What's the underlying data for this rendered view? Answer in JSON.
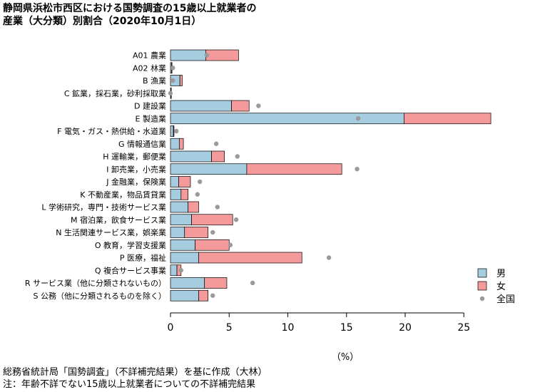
{
  "title_line1": "静岡県浜松市西区における国勢調査の15歳以上就業者の",
  "title_line2": "産業（大分類）別割合（2020年10月1日）",
  "footer_line1": "総務省統計局「国勢調査」（不詳補完結果）を基に作成（大林）",
  "footer_line2": "注：年齢不詳でない15歳以上就業者についての不詳補完結果",
  "chart_data": {
    "type": "bar",
    "orientation": "horizontal",
    "stacked": true,
    "xlabel": "（%）",
    "xlim": [
      0,
      27.5
    ],
    "xticks": [
      0,
      5,
      10,
      15,
      20,
      25
    ],
    "grid": false,
    "legend_position": "bottom-right",
    "categories": [
      "A01 農業",
      "A02 林業",
      "B 漁業",
      "C 鉱業，採石業，砂利採取業",
      "D 建設業",
      "E 製造業",
      "F 電気・ガス・熱供給・水道業",
      "G 情報通信業",
      "H 運輸業，郵便業",
      "I 卸売業，小売業",
      "J 金融業，保険業",
      "K 不動産業，物品賃貸業",
      "L 学術研究，専門・技術サービス業",
      "M 宿泊業，飲食サービス業",
      "N 生活関連サービス業，娯楽業",
      "O 教育，学習支援業",
      "P 医療，福祉",
      "Q 複合サービス事業",
      "R サービス業（他に分類されないもの）",
      "S 公務（他に分類されるものを除く）"
    ],
    "series": [
      {
        "name": "男",
        "type": "bar",
        "color": "#a6cce0",
        "values": [
          3.0,
          0.1,
          0.8,
          0.05,
          5.2,
          19.9,
          0.25,
          0.75,
          3.5,
          6.5,
          0.7,
          0.9,
          1.5,
          1.8,
          1.2,
          2.1,
          2.4,
          0.55,
          2.9,
          2.4
        ]
      },
      {
        "name": "女",
        "type": "bar",
        "color": "#f59a9a",
        "values": [
          2.8,
          0.03,
          0.2,
          0.02,
          1.5,
          7.4,
          0.05,
          0.35,
          1.1,
          8.1,
          1.0,
          0.6,
          0.9,
          3.5,
          2.0,
          2.9,
          8.8,
          0.35,
          1.9,
          0.8
        ]
      },
      {
        "name": "全国",
        "type": "point",
        "color": "#9a9a9a",
        "values": [
          3.1,
          0.2,
          0.2,
          0.0,
          7.5,
          16.0,
          0.5,
          3.9,
          5.7,
          15.9,
          2.5,
          2.3,
          4.0,
          5.6,
          3.6,
          5.1,
          13.5,
          0.9,
          7.0,
          3.6
        ]
      }
    ]
  }
}
